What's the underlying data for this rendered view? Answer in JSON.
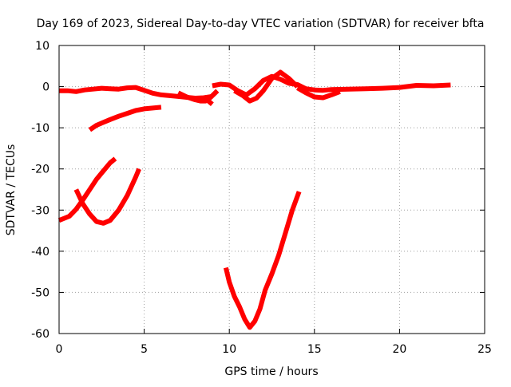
{
  "chart_data": {
    "type": "line",
    "title": "Day 169 of 2023, Sidereal Day-to-day VTEC variation (SDTVAR) for receiver bfta",
    "xlabel": "GPS time / hours",
    "ylabel": "SDTVAR / TECUs",
    "xlim": [
      0,
      25
    ],
    "ylim": [
      -60,
      10
    ],
    "x_ticks": [
      0,
      5,
      10,
      15,
      20,
      25
    ],
    "y_ticks": [
      -60,
      -50,
      -40,
      -30,
      -20,
      -10,
      0,
      10
    ],
    "x_tick_labels": [
      "0",
      "5",
      "10",
      "15",
      "20",
      "25"
    ],
    "y_tick_labels": [
      "-60",
      "-50",
      "-40",
      "-30",
      "-20",
      "-10",
      "0",
      "10"
    ],
    "grid": true,
    "line_color": "#ff0000",
    "grid_color": "#a0a0a0",
    "series": [
      {
        "name": "arc-main-1",
        "x": [
          0.0,
          0.5,
          1.0,
          1.5,
          2.0,
          2.5,
          3.0,
          3.5,
          4.0,
          4.5,
          5.0,
          5.5,
          6.0,
          6.5,
          7.0,
          7.5,
          8.0,
          8.5,
          9.0
        ],
        "y": [
          -1.0,
          -1.0,
          -1.2,
          -0.8,
          -0.6,
          -0.4,
          -0.5,
          -0.6,
          -0.3,
          -0.2,
          -0.9,
          -1.6,
          -2.0,
          -2.2,
          -2.4,
          -2.6,
          -2.8,
          -2.7,
          -2.4
        ]
      },
      {
        "name": "arc-main-2",
        "x": [
          9.0,
          9.5,
          10.0,
          10.5,
          11.0,
          11.5,
          12.0,
          12.5,
          13.0,
          13.5,
          14.0,
          14.5,
          15.0,
          15.5,
          16.0,
          17.0,
          18.0,
          19.0,
          20.0,
          21.0,
          22.0,
          23.0
        ],
        "y": [
          0.2,
          0.6,
          0.4,
          -1.0,
          -2.0,
          -0.5,
          1.5,
          2.5,
          1.8,
          0.8,
          0.5,
          -0.5,
          -0.8,
          -0.9,
          -0.7,
          -0.6,
          -0.5,
          -0.4,
          -0.2,
          0.3,
          0.2,
          0.4
        ]
      },
      {
        "name": "arc-dip-1",
        "x": [
          14.0,
          14.5,
          15.0,
          15.5,
          16.0,
          16.5
        ],
        "y": [
          -0.3,
          -1.5,
          -2.5,
          -2.7,
          -2.0,
          -1.2
        ]
      },
      {
        "name": "arc-dip-2",
        "x": [
          10.3,
          10.8,
          11.2,
          11.6,
          12.0,
          12.5,
          13.0,
          13.5,
          14.0
        ],
        "y": [
          -1.0,
          -2.2,
          -3.5,
          -2.8,
          -1.0,
          2.0,
          3.5,
          2.0,
          0.0
        ]
      },
      {
        "name": "arc-dip-3",
        "x": [
          7.0,
          7.5,
          8.0,
          8.3,
          8.6,
          8.8,
          9.0,
          9.3
        ],
        "y": [
          -1.5,
          -2.5,
          -3.2,
          -3.5,
          -3.5,
          -3.0,
          -2.2,
          -1.0
        ]
      },
      {
        "name": "arc-drop-short",
        "x": [
          8.5,
          8.8,
          9.0
        ],
        "y": [
          -2.5,
          -3.6,
          -4.3
        ]
      },
      {
        "name": "arc-rise-low",
        "x": [
          1.8,
          2.2,
          2.6,
          3.0,
          3.5,
          4.0,
          4.5,
          5.0,
          5.5,
          6.0
        ],
        "y": [
          -10.5,
          -9.4,
          -8.7,
          -8.0,
          -7.2,
          -6.5,
          -5.8,
          -5.4,
          -5.2,
          -5.0
        ]
      },
      {
        "name": "arc-curve-a",
        "x": [
          0.0,
          0.3,
          0.6,
          1.0,
          1.4,
          1.8,
          2.2,
          2.6,
          3.0,
          3.3
        ],
        "y": [
          -32.5,
          -32.0,
          -31.5,
          -29.8,
          -27.5,
          -25.0,
          -22.5,
          -20.5,
          -18.5,
          -17.5
        ]
      },
      {
        "name": "arc-curve-b",
        "x": [
          1.0,
          1.4,
          1.8,
          2.2,
          2.6,
          3.0,
          3.5,
          4.0,
          4.5,
          4.7
        ],
        "y": [
          -25.0,
          -28.5,
          -31.0,
          -32.8,
          -33.2,
          -32.5,
          -30.0,
          -26.5,
          -22.0,
          -20.0
        ]
      },
      {
        "name": "arc-deep-v",
        "x": [
          9.8,
          10.0,
          10.3,
          10.6,
          10.9,
          11.2,
          11.5,
          11.8,
          12.1,
          12.5,
          12.9,
          13.3,
          13.7,
          14.1
        ],
        "y": [
          -44.0,
          -47.5,
          -51.0,
          -53.5,
          -56.5,
          -58.5,
          -57.0,
          -54.0,
          -49.5,
          -45.5,
          -41.0,
          -35.5,
          -30.0,
          -25.5
        ]
      }
    ]
  }
}
